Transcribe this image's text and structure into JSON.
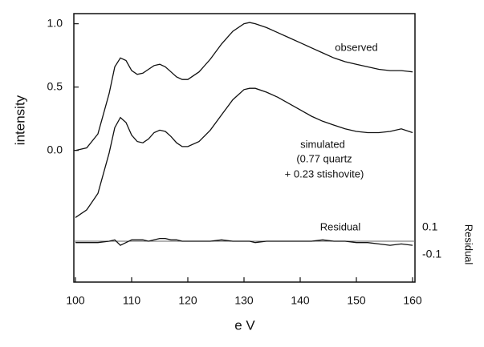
{
  "chart_data": {
    "type": "line",
    "xlabel": "e V",
    "ylabel": "intensity",
    "y2label": "Residual",
    "x": [
      100,
      102,
      104,
      106,
      107,
      108,
      109,
      110,
      111,
      112,
      113,
      114,
      115,
      116,
      117,
      118,
      119,
      120,
      122,
      124,
      126,
      128,
      130,
      131,
      132,
      134,
      136,
      138,
      140,
      142,
      144,
      146,
      148,
      150,
      152,
      154,
      156,
      158,
      160
    ],
    "series": [
      {
        "name": "observed",
        "color": "#111111",
        "values": [
          0.0,
          0.02,
          0.13,
          0.45,
          0.66,
          0.73,
          0.71,
          0.63,
          0.6,
          0.61,
          0.64,
          0.67,
          0.68,
          0.66,
          0.62,
          0.58,
          0.56,
          0.56,
          0.62,
          0.72,
          0.84,
          0.94,
          1.0,
          1.01,
          1.0,
          0.97,
          0.93,
          0.89,
          0.85,
          0.81,
          0.77,
          0.73,
          0.7,
          0.68,
          0.66,
          0.64,
          0.63,
          0.63,
          0.62
        ]
      },
      {
        "name": "simulated",
        "color": "#111111",
        "values": [
          -0.53,
          -0.47,
          -0.34,
          -0.02,
          0.18,
          0.26,
          0.22,
          0.12,
          0.07,
          0.06,
          0.09,
          0.14,
          0.16,
          0.15,
          0.11,
          0.06,
          0.03,
          0.03,
          0.07,
          0.16,
          0.28,
          0.4,
          0.48,
          0.49,
          0.49,
          0.46,
          0.42,
          0.37,
          0.32,
          0.27,
          0.23,
          0.2,
          0.17,
          0.15,
          0.14,
          0.14,
          0.15,
          0.17,
          0.14
        ]
      },
      {
        "name": "Residual",
        "color": "#111111",
        "axis": "y2",
        "values": [
          -0.01,
          -0.01,
          -0.01,
          0.0,
          0.01,
          -0.03,
          -0.01,
          0.01,
          0.01,
          0.01,
          0.0,
          0.01,
          0.02,
          0.02,
          0.01,
          0.01,
          0.0,
          0.0,
          0.0,
          0.0,
          0.01,
          0.0,
          0.0,
          0.0,
          -0.01,
          0.0,
          0.0,
          0.0,
          0.0,
          0.0,
          0.01,
          0.0,
          0.0,
          -0.01,
          -0.01,
          -0.02,
          -0.03,
          -0.02,
          -0.03
        ]
      }
    ],
    "annotations": [
      "(0.77 quartz",
      "+ 0.23 stishovite)"
    ],
    "xlim": [
      100,
      160
    ],
    "xticks": [
      100,
      110,
      120,
      130,
      140,
      150,
      160
    ],
    "ylim": [
      -1.04,
      1.08
    ],
    "yticks": [
      {
        "value": 0,
        "label": "0.0"
      },
      0.5,
      {
        "value": 1,
        "label": "1.0"
      }
    ],
    "y2lim": [
      -0.3,
      1.67
    ],
    "y2ticks": [
      0.1,
      -0.1
    ]
  }
}
